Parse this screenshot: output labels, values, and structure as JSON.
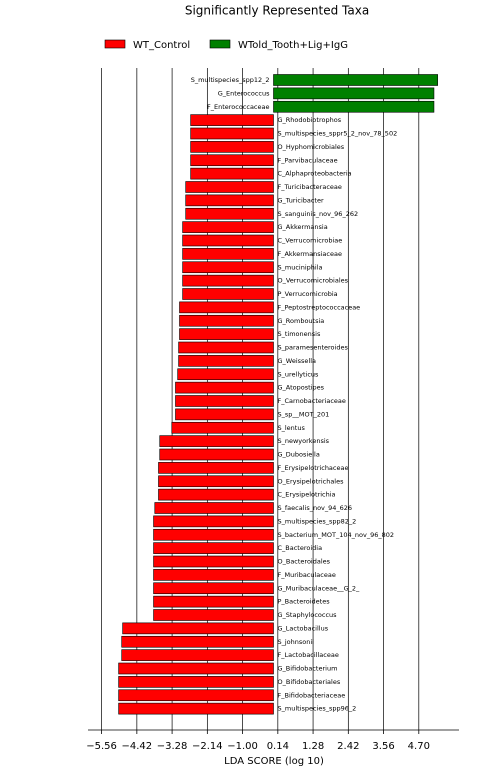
{
  "chart_data": {
    "type": "bar",
    "orientation": "horizontal",
    "title": "Significantly Represented Taxa",
    "xlabel": "LDA SCORE (log 10)",
    "categories": [
      "S_multispecies_spp12_2",
      "G_Enterococcus",
      "F_Enterococcaceae",
      "G_Rhodobiotrophos",
      "S_multispecies_sppr5_2_nov_78_502",
      "O_Hyphomicrobiales",
      "F_Parvibaculaceae",
      "C_Alphaproteobacteria",
      "F_Turicibacteraceae",
      "G_Turicibacter",
      "S_sanguinis_nov_96_262",
      "G_Akkermansia",
      "C_Verrucomicrobiae",
      "F_Akkermansiaceae",
      "S_muciniphila",
      "O_Verrucomicrobiales",
      "P_Verrucomicrobia",
      "F_Peptostreptococcaceae",
      "G_Romboutsia",
      "S_timonensis",
      "S_paramesenteroides",
      "G_Weissella",
      "S_urellyticus",
      "G_Atopostipes",
      "F_Carnobacteriaceae",
      "S_sp__MOT_201",
      "S_lentus",
      "S_newyorkensis",
      "G_Dubosiella",
      "F_Erysipelotrichaceae",
      "O_Erysipelotrichales",
      "C_Erysipelotrichia",
      "S_faecalis_nov_94_626",
      "S_multispecies_spp82_2",
      "S_bacterium_MOT_104_nov_96_802",
      "C_Bacteroidia",
      "O_Bacteroidales",
      "F_Muribaculaceae",
      "G_Muribaculaceae__G_2_",
      "P_Bacteroidetes",
      "G_Staphylococcus",
      "G_Lactobacillus",
      "S_johnsonii",
      "F_Lactobacillaceae",
      "G_Bifidobacterium",
      "O_Bifidobacteriales",
      "F_Bifidobacteriaceae",
      "S_multispecies_spp96_2"
    ],
    "series": [
      {
        "name": "WT_Control",
        "color": "#ff0000",
        "values": [
          null,
          null,
          null,
          -2.68,
          -2.68,
          -2.68,
          -2.68,
          -2.68,
          -2.84,
          -2.84,
          -2.84,
          -2.94,
          -2.94,
          -2.94,
          -2.94,
          -2.94,
          -2.94,
          -3.04,
          -3.04,
          -3.04,
          -3.07,
          -3.07,
          -3.1,
          -3.17,
          -3.17,
          -3.17,
          -3.29,
          -3.68,
          -3.68,
          -3.72,
          -3.72,
          -3.72,
          -3.84,
          -3.88,
          -3.88,
          -3.88,
          -3.88,
          -3.88,
          -3.88,
          -3.88,
          -3.88,
          -4.88,
          -4.91,
          -4.91,
          -5.01,
          -5.01,
          -5.01,
          -5.01
        ]
      },
      {
        "name": "WTold_Tooth+Lig+IgG",
        "color": "#008000",
        "values": [
          5.31,
          5.19,
          5.19,
          null,
          null,
          null,
          null,
          null,
          null,
          null,
          null,
          null,
          null,
          null,
          null,
          null,
          null,
          null,
          null,
          null,
          null,
          null,
          null,
          null,
          null,
          null,
          null,
          null,
          null,
          null,
          null,
          null,
          null,
          null,
          null,
          null,
          null,
          null,
          null,
          null,
          null,
          null,
          null,
          null,
          null,
          null,
          null,
          null
        ]
      }
    ],
    "xlim": [
      -6,
      6
    ],
    "xticks": [
      {
        "value": -5.56,
        "label": "−5.56"
      },
      {
        "value": -4.42,
        "label": "−4.42"
      },
      {
        "value": -3.28,
        "label": "−3.28"
      },
      {
        "value": -2.14,
        "label": "−2.14"
      },
      {
        "value": -1,
        "label": "−1.00"
      },
      0.14,
      1.28,
      2.42,
      3.56,
      {
        "value": 4.7,
        "label": "4.70"
      }
    ],
    "grid": true
  }
}
